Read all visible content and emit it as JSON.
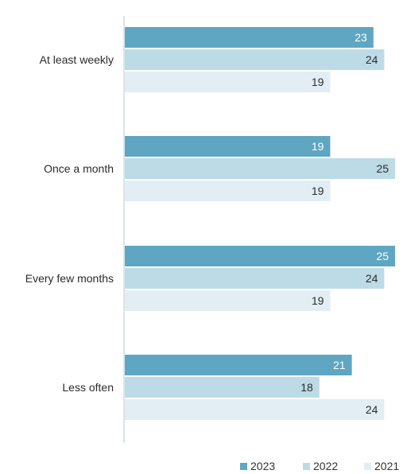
{
  "chart_data": {
    "type": "bar",
    "orientation": "horizontal",
    "title": "",
    "xlabel": "",
    "ylabel": "",
    "categories": [
      "At least weekly",
      "Once a month",
      "Every few months",
      "Less often"
    ],
    "series": [
      {
        "name": "2023",
        "values": [
          23,
          19,
          25,
          21
        ],
        "color": "#5ea6c1",
        "label_color": "#ffffff"
      },
      {
        "name": "2022",
        "values": [
          24,
          25,
          24,
          18
        ],
        "color": "#bddbe6",
        "label_color": "#2b2b2b"
      },
      {
        "name": "2021",
        "values": [
          19,
          19,
          19,
          24
        ],
        "color": "#e2eef3",
        "label_color": "#2b2b2b"
      }
    ],
    "xlim": [
      0,
      25
    ],
    "grid": false,
    "legend_position": "bottom-right"
  }
}
